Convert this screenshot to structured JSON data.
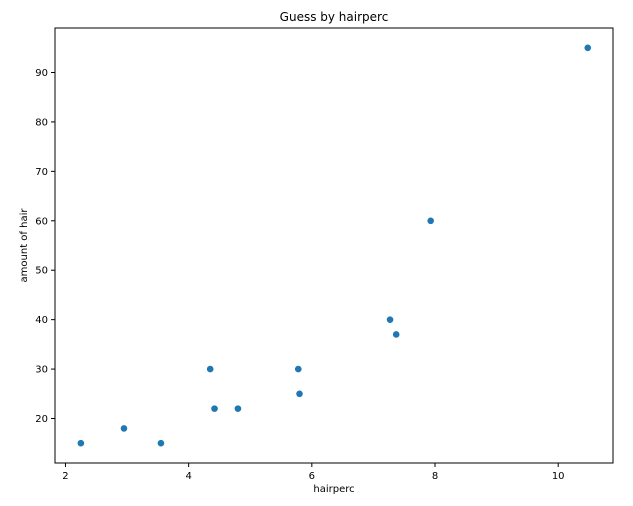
{
  "chart_data": {
    "type": "scatter",
    "title": "Guess by hairperc",
    "xlabel": "hairperc",
    "ylabel": "amount of hair",
    "xlim": [
      1.83,
      10.89
    ],
    "ylim": [
      11.0,
      99.0
    ],
    "xticks": [
      2,
      4,
      6,
      8,
      10
    ],
    "yticks": [
      20,
      30,
      40,
      50,
      60,
      70,
      80,
      90
    ],
    "grid": false,
    "marker_color": "#1f77b4",
    "series": [
      {
        "x": [
          2.25,
          2.95,
          3.55,
          4.35,
          4.42,
          4.8,
          5.78,
          5.8,
          7.27,
          7.37,
          7.93,
          10.48
        ],
        "y": [
          15,
          18,
          15,
          30,
          22,
          22,
          30,
          25,
          40,
          37,
          60,
          95
        ]
      }
    ]
  }
}
